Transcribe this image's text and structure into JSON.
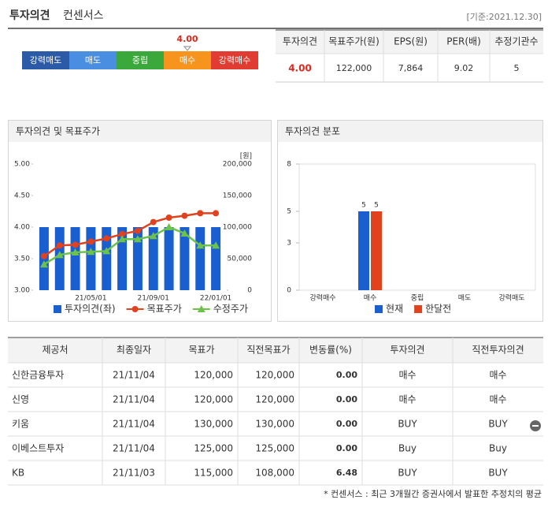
{
  "header": {
    "title": "투자의견",
    "subtitle": "컨센서스",
    "date": "[기준:2021.12.30]"
  },
  "consensus": {
    "scale": [
      "강력매도",
      "매도",
      "중립",
      "매수",
      "강력매수"
    ],
    "colors": [
      "#2b5aa6",
      "#4a8ee2",
      "#3aa83a",
      "#f7941d",
      "#e03c31"
    ],
    "score": {
      "value": 4,
      "label": "4.00"
    }
  },
  "summary": {
    "columns": [
      "투자의견",
      "목표주가(원)",
      "EPS(원)",
      "PER(배)",
      "추정기관수"
    ],
    "values": [
      "4.00",
      "122,000",
      "7,864",
      "9.02",
      "5"
    ]
  },
  "chart_data": [
    {
      "type": "bar-line",
      "title": "투자의견 및 목표주가",
      "y2_unit": "[원]",
      "categories": [
        null,
        null,
        null,
        "21/05/01",
        null,
        null,
        null,
        "21/09/01",
        null,
        null,
        null,
        "22/01/01"
      ],
      "series": [
        {
          "name": "투자의견(좌)",
          "type": "bar",
          "color": "#1a5fd0",
          "values": [
            4,
            4,
            4,
            4,
            4,
            4,
            4,
            4,
            4,
            4,
            4,
            4
          ]
        },
        {
          "name": "목표주가",
          "type": "line",
          "axis": "y2",
          "marker": "circle",
          "color": "#e0421e",
          "values": [
            54000,
            71000,
            72000,
            77000,
            82000,
            89000,
            94000,
            108000,
            115000,
            118000,
            122000,
            122000
          ]
        },
        {
          "name": "수정주가",
          "type": "line",
          "axis": "y2",
          "marker": "triangle",
          "color": "#6cc24a",
          "values": [
            41000,
            56000,
            60000,
            61000,
            62000,
            81000,
            81000,
            86000,
            100000,
            90000,
            71000,
            71000
          ]
        }
      ],
      "ylim": [
        3,
        5
      ],
      "yticks": [
        {
          "value": 3,
          "label": "3.00"
        },
        {
          "value": 3.5,
          "label": "3.50"
        },
        {
          "value": 4,
          "label": "4.00"
        },
        {
          "value": 4.5,
          "label": "4.50"
        },
        {
          "value": 5,
          "label": "5.00"
        }
      ],
      "y2lim": [
        0,
        200000
      ],
      "y2ticks": [
        0,
        {
          "value": 50000,
          "label": "50,000"
        },
        {
          "value": 100000,
          "label": "100,000"
        },
        {
          "value": 150000,
          "label": "150,000"
        },
        {
          "value": 200000,
          "label": "200,000"
        }
      ]
    },
    {
      "type": "bar",
      "title": "투자의견 분포",
      "categories": [
        "강력매수",
        "매수",
        "중립",
        "매도",
        "강력매도"
      ],
      "series": [
        {
          "name": "현재",
          "color": "#1a5fd0",
          "values": [
            0,
            5,
            0,
            0,
            0
          ]
        },
        {
          "name": "한달전",
          "color": "#e0421e",
          "values": [
            0,
            5,
            0,
            0,
            0
          ]
        }
      ],
      "ylim": [
        0,
        8
      ],
      "yticks": [
        0,
        3,
        5,
        8
      ]
    }
  ],
  "table": {
    "columns": [
      "제공처",
      "최종일자",
      "목표가",
      "직전목표가",
      "변동률(%)",
      "투자의견",
      "직전투자의견"
    ],
    "rows": [
      [
        "신한금융투자",
        "21/11/04",
        "120,000",
        "120,000",
        "0.00",
        "매수",
        "매수"
      ],
      [
        "신영",
        "21/11/04",
        "120,000",
        "120,000",
        "0.00",
        "매수",
        "매수"
      ],
      [
        "키움",
        "21/11/04",
        "130,000",
        "130,000",
        "0.00",
        "BUY",
        "BUY"
      ],
      [
        "이베스트투자",
        "21/11/04",
        "125,000",
        "125,000",
        "0.00",
        "Buy",
        "Buy"
      ],
      [
        "KB",
        "21/11/03",
        "115,000",
        "108,000",
        "6.48",
        "BUY",
        "BUY"
      ]
    ]
  },
  "footnote": "* 컨센서스 : 최근 3개월간 증권사에서 발표한 추정치의 평균"
}
